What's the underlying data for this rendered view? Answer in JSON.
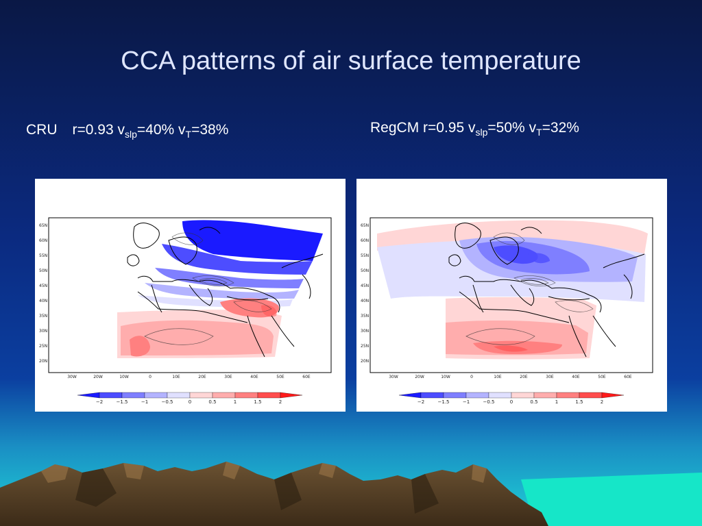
{
  "slide": {
    "title": "CCA patterns of air surface temperature",
    "panels": [
      {
        "id": "cru",
        "label": "CRU",
        "r": "r=0.93",
        "v_slp_prefix": "v",
        "v_slp_sub": "slp",
        "v_slp_value": "=40%",
        "v_t_prefix": "v",
        "v_t_sub": "T",
        "v_t_value": "=38%"
      },
      {
        "id": "regcm",
        "label": "RegCM",
        "r": "r=0.95",
        "v_slp_prefix": "v",
        "v_slp_sub": "slp",
        "v_slp_value": "=50%",
        "v_t_prefix": "v",
        "v_t_sub": "T",
        "v_t_value": "=32%"
      }
    ]
  },
  "map": {
    "lat_labels": [
      "65N",
      "60N",
      "55N",
      "50N",
      "45N",
      "40N",
      "35N",
      "30N",
      "25N",
      "20N"
    ],
    "lon_labels": [
      "30W",
      "20W",
      "10W",
      "0",
      "10E",
      "20E",
      "30E",
      "40E",
      "50E",
      "60E"
    ],
    "colorbar_labels": [
      "−2",
      "−1.5",
      "−1",
      "−0.5",
      "0",
      "0.5",
      "1",
      "1.5",
      "2"
    ],
    "colorbar_colors": [
      "#1a1aff",
      "#4d4dff",
      "#7f7fff",
      "#b3b3ff",
      "#e0e0ff",
      "#ffd6d6",
      "#ffadad",
      "#ff8080",
      "#ff4d4d",
      "#ff1a1a"
    ]
  }
}
